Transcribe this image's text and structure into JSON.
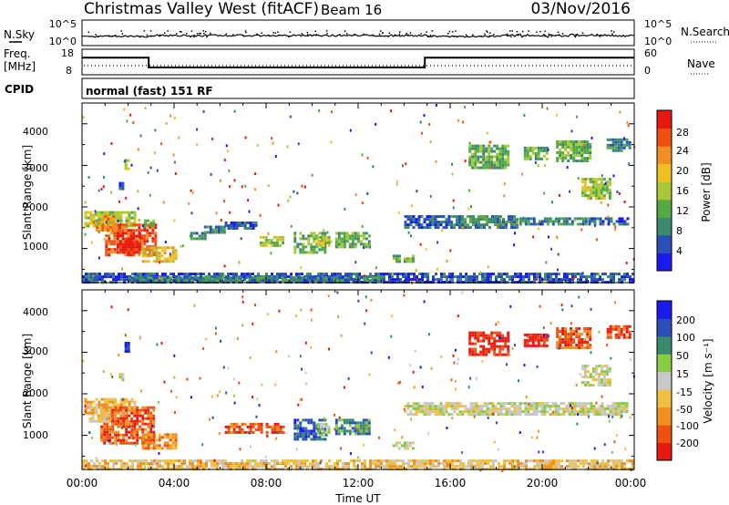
{
  "header": {
    "station": "Christmas Valley West (fitACF)",
    "beam": "Beam 16",
    "date": "03/Nov/2016"
  },
  "noise_panel": {
    "left_label": "N.Sky",
    "right_label": "N.Search",
    "left_ticks": [
      "10^5",
      "10^0"
    ],
    "right_ticks": [
      "10^5",
      "10^0"
    ]
  },
  "freq_panel": {
    "left_label_1": "Freq.",
    "left_label_2": "[MHz]",
    "right_label": "Nave",
    "left_ticks": [
      "18",
      "8"
    ],
    "right_ticks": [
      "60",
      "0"
    ]
  },
  "cpid": {
    "label": "CPID",
    "mode_text": "normal (fast) 151 RF"
  },
  "x_axis": {
    "label": "Time UT",
    "ticks": [
      "00:00",
      "04:00",
      "08:00",
      "12:00",
      "16:00",
      "20:00",
      "00:00"
    ]
  },
  "power_panel": {
    "ylabel": "Slant Range [km]",
    "yticks": [
      "4000",
      "3000",
      "2000",
      "1000"
    ],
    "colorbar_label": "Power [dB]",
    "colorbar_ticks": [
      "28",
      "24",
      "20",
      "16",
      "12",
      "8",
      "4"
    ]
  },
  "velocity_panel": {
    "ylabel": "Slant Range [km]",
    "yticks": [
      "4000",
      "3000",
      "2000",
      "1000"
    ],
    "colorbar_label": "Velocity [m s⁻¹]",
    "colorbar_ticks": [
      "200",
      "100",
      "50",
      "15",
      "-15",
      "-50",
      "-100",
      "-200"
    ]
  },
  "chart_data": {
    "type": "heatmap",
    "x_range_hours": [
      0,
      24
    ],
    "y_range_km": [
      180,
      4500
    ],
    "cpid_text": "normal (fast) 151 RF",
    "frequency_mhz": [
      {
        "from_h": 0.0,
        "to_h": 2.9,
        "value": 15
      },
      {
        "from_h": 2.9,
        "to_h": 14.9,
        "value": 10.5
      },
      {
        "from_h": 14.9,
        "to_h": 24.0,
        "value": 15
      }
    ],
    "power_colorscale": {
      "ticks": [
        4,
        8,
        12,
        16,
        20,
        24,
        28
      ],
      "colors": [
        "#1a1aee",
        "#2a50b8",
        "#3a8a70",
        "#55aa44",
        "#a8c83a",
        "#f0c020",
        "#f09020",
        "#f05010",
        "#e81a10"
      ]
    },
    "velocity_colorscale": {
      "ticks": [
        -200,
        -100,
        -50,
        -15,
        15,
        50,
        100,
        200
      ],
      "colors": [
        "#e81a10",
        "#f05010",
        "#f09020",
        "#f0c040",
        "#c8c8c8",
        "#88cc44",
        "#3a8a70",
        "#2a50b8",
        "#1a1aee"
      ]
    },
    "power_regions": [
      {
        "t0": 0.1,
        "t1": 2.3,
        "r0": 1500,
        "r1": 1900,
        "level": 4
      },
      {
        "t0": 1.0,
        "t1": 3.2,
        "r0": 800,
        "r1": 1600,
        "level": 7
      },
      {
        "t0": 1.5,
        "t1": 2.6,
        "r0": 900,
        "r1": 1400,
        "level": 8
      },
      {
        "t0": 2.6,
        "t1": 4.1,
        "r0": 650,
        "r1": 1050,
        "level": 5
      },
      {
        "t0": 0.6,
        "t1": 1.5,
        "r0": 1400,
        "r1": 1800,
        "level": 6
      },
      {
        "t0": 1.85,
        "t1": 2.05,
        "r0": 2900,
        "r1": 3150,
        "level": 4
      },
      {
        "t0": 1.6,
        "t1": 1.8,
        "r0": 2400,
        "r1": 2600,
        "level": 1
      },
      {
        "t0": 2.7,
        "t1": 3.2,
        "r0": 1500,
        "r1": 1700,
        "level": 3
      },
      {
        "t0": 4.7,
        "t1": 5.4,
        "r0": 1200,
        "r1": 1400,
        "level": 2
      },
      {
        "t0": 5.3,
        "t1": 6.2,
        "r0": 1350,
        "r1": 1550,
        "level": 2
      },
      {
        "t0": 6.2,
        "t1": 7.6,
        "r0": 1450,
        "r1": 1650,
        "level": 1
      },
      {
        "t0": 7.6,
        "t1": 8.8,
        "r0": 1050,
        "r1": 1300,
        "level": 4
      },
      {
        "t0": 9.2,
        "t1": 10.6,
        "r0": 900,
        "r1": 1400,
        "level": 3
      },
      {
        "t0": 10.2,
        "t1": 10.8,
        "r0": 1050,
        "r1": 1300,
        "level": 4
      },
      {
        "t0": 11.0,
        "t1": 12.6,
        "r0": 1000,
        "r1": 1400,
        "level": 3
      },
      {
        "t0": 13.5,
        "t1": 14.5,
        "r0": 650,
        "r1": 850,
        "level": 3
      },
      {
        "t0": 14.0,
        "t1": 16.0,
        "r0": 1500,
        "r1": 1800,
        "level": 1
      },
      {
        "t0": 16.0,
        "t1": 19.0,
        "r0": 1500,
        "r1": 1800,
        "level": 2
      },
      {
        "t0": 19.0,
        "t1": 22.0,
        "r0": 1550,
        "r1": 1750,
        "level": 2
      },
      {
        "t0": 22.0,
        "t1": 23.8,
        "r0": 1550,
        "r1": 1750,
        "level": 1
      },
      {
        "t0": 16.8,
        "t1": 18.6,
        "r0": 2900,
        "r1": 3500,
        "level": 3
      },
      {
        "t0": 19.2,
        "t1": 20.3,
        "r0": 3150,
        "r1": 3450,
        "level": 3
      },
      {
        "t0": 20.6,
        "t1": 22.2,
        "r0": 3100,
        "r1": 3600,
        "level": 3
      },
      {
        "t0": 21.7,
        "t1": 23.0,
        "r0": 2200,
        "r1": 2700,
        "level": 4
      },
      {
        "t0": 22.8,
        "t1": 23.9,
        "r0": 3350,
        "r1": 3650,
        "level": 2
      },
      {
        "t0": 0.0,
        "t1": 24.0,
        "r0": 180,
        "r1": 420,
        "level": 1
      },
      {
        "t0": 2.0,
        "t1": 13.0,
        "r0": 200,
        "r1": 330,
        "level": 2
      }
    ],
    "velocity_regions": [
      {
        "t0": 0.1,
        "t1": 2.4,
        "r0": 1500,
        "r1": 1900,
        "level": 3
      },
      {
        "t0": 0.8,
        "t1": 3.2,
        "r0": 800,
        "r1": 1700,
        "level": 1
      },
      {
        "t0": 2.6,
        "t1": 4.1,
        "r0": 650,
        "r1": 1050,
        "level": 2
      },
      {
        "t0": 0.3,
        "t1": 1.2,
        "r0": 1300,
        "r1": 1700,
        "level": 3
      },
      {
        "t0": 1.85,
        "t1": 2.05,
        "r0": 3000,
        "r1": 3250,
        "level": 8
      },
      {
        "t0": 1.6,
        "t1": 1.8,
        "r0": 2300,
        "r1": 2500,
        "level": 4
      },
      {
        "t0": 6.2,
        "t1": 8.8,
        "r0": 1050,
        "r1": 1300,
        "level": 1
      },
      {
        "t0": 9.2,
        "t1": 10.6,
        "r0": 900,
        "r1": 1400,
        "level": 7
      },
      {
        "t0": 10.2,
        "t1": 10.8,
        "r0": 1000,
        "r1": 1300,
        "level": 5
      },
      {
        "t0": 11.0,
        "t1": 12.6,
        "r0": 1000,
        "r1": 1400,
        "level": 6
      },
      {
        "t0": 13.5,
        "t1": 14.5,
        "r0": 650,
        "r1": 850,
        "level": 4
      },
      {
        "t0": 14.0,
        "t1": 23.8,
        "r0": 1500,
        "r1": 1800,
        "level": 4
      },
      {
        "t0": 16.8,
        "t1": 18.6,
        "r0": 2900,
        "r1": 3500,
        "level": 0
      },
      {
        "t0": 19.2,
        "t1": 20.3,
        "r0": 3150,
        "r1": 3450,
        "level": 0
      },
      {
        "t0": 20.6,
        "t1": 22.2,
        "r0": 3100,
        "r1": 3600,
        "level": 1
      },
      {
        "t0": 21.7,
        "t1": 23.0,
        "r0": 2200,
        "r1": 2700,
        "level": 4
      },
      {
        "t0": 22.8,
        "t1": 23.9,
        "r0": 3350,
        "r1": 3650,
        "level": 1
      },
      {
        "t0": 0.0,
        "t1": 24.0,
        "r0": 180,
        "r1": 420,
        "level": 3
      }
    ]
  }
}
